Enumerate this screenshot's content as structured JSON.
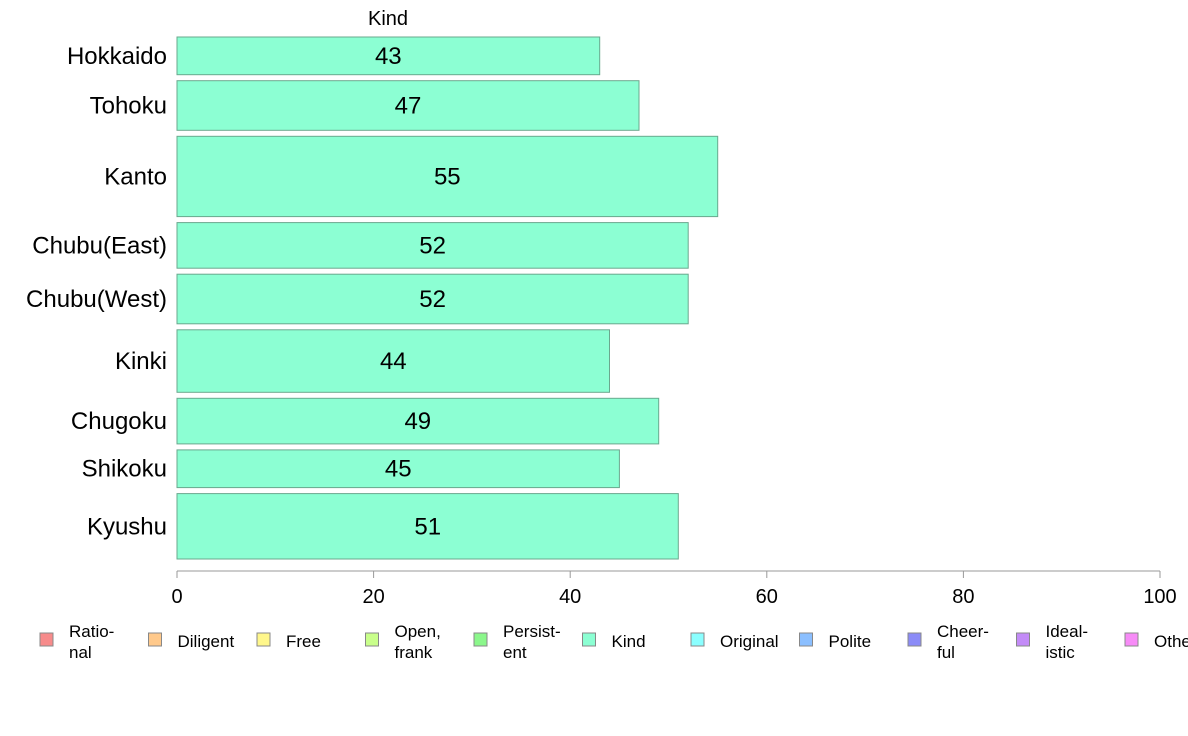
{
  "chart_data": {
    "type": "bar",
    "orientation": "horizontal",
    "title": "Kind",
    "categories": [
      "Hokkaido",
      "Tohoku",
      "Kanto",
      "Chubu(East)",
      "Chubu(West)",
      "Kinki",
      "Chugoku",
      "Shikoku",
      "Kyushu"
    ],
    "values": [
      43,
      47,
      55,
      52,
      52,
      44,
      49,
      45,
      51
    ],
    "data_labels": [
      "43",
      "47",
      "55",
      "52",
      "52",
      "44",
      "49",
      "45",
      "51"
    ],
    "relative_bar_thickness": [
      0.76,
      1.0,
      1.62,
      0.92,
      1.0,
      1.26,
      0.92,
      0.76,
      1.32
    ],
    "xlim": [
      0,
      100
    ],
    "xticks": [
      0,
      20,
      40,
      60,
      80,
      100
    ],
    "tick_labels": [
      "0",
      "20",
      "40",
      "60",
      "80",
      "100"
    ],
    "grid": false,
    "bar_color": "#8cffd3",
    "bar_edge_color": "#6aa88e",
    "legend_position": "bottom",
    "legend": [
      {
        "lines": [
          "Ratio-",
          "nal"
        ],
        "color": "#f78b8b"
      },
      {
        "lines": [
          "Diligent"
        ],
        "color": "#ffc98b"
      },
      {
        "lines": [
          "Free"
        ],
        "color": "#fff78b"
      },
      {
        "lines": [
          "Open,",
          "frank"
        ],
        "color": "#c9ff8b"
      },
      {
        "lines": [
          "Persist-",
          "ent"
        ],
        "color": "#8bf78b"
      },
      {
        "lines": [
          "Kind"
        ],
        "color": "#8cffd3"
      },
      {
        "lines": [
          "Original"
        ],
        "color": "#8bffff"
      },
      {
        "lines": [
          "Polite"
        ],
        "color": "#8bbfff"
      },
      {
        "lines": [
          "Cheer-",
          "ful"
        ],
        "color": "#8b8bf7"
      },
      {
        "lines": [
          "Ideal-",
          "istic"
        ],
        "color": "#c38bf7"
      },
      {
        "lines": [
          "Othe"
        ],
        "color": "#f78bf7"
      }
    ]
  }
}
